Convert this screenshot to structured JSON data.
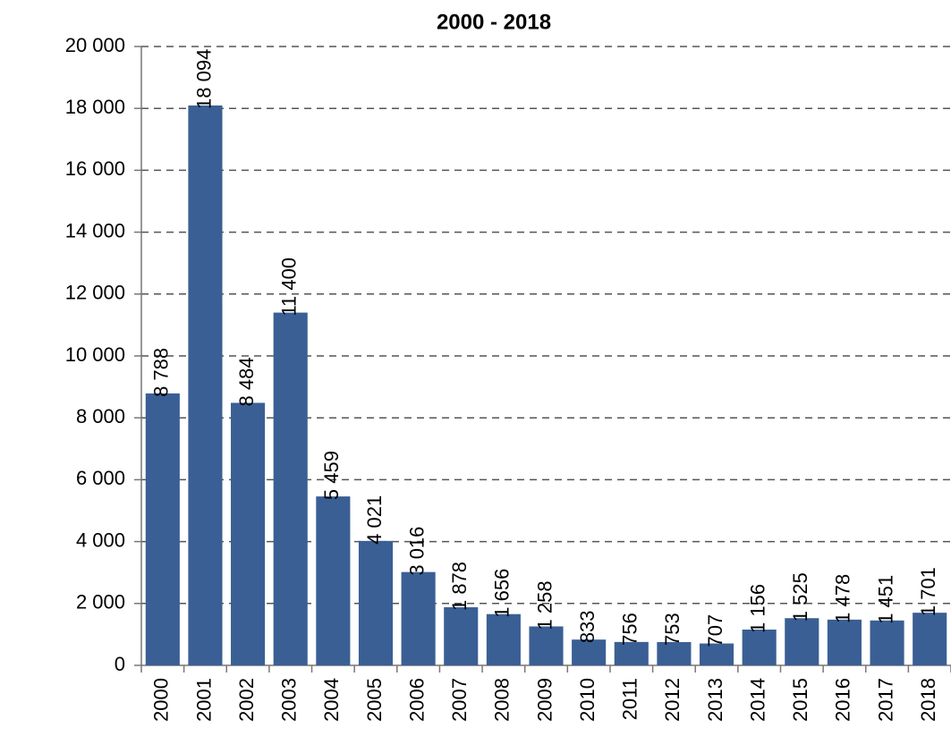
{
  "chart_data": {
    "type": "bar",
    "title": "2000 - 2018",
    "categories": [
      "2000",
      "2001",
      "2002",
      "2003",
      "2004",
      "2005",
      "2006",
      "2007",
      "2008",
      "2009",
      "2010",
      "2011",
      "2012",
      "2013",
      "2014",
      "2015",
      "2016",
      "2017",
      "2018"
    ],
    "values": [
      8788,
      18094,
      8484,
      11400,
      5459,
      4021,
      3016,
      1878,
      1656,
      1258,
      833,
      756,
      753,
      707,
      1156,
      1525,
      1478,
      1451,
      1701
    ],
    "value_labels": [
      "8 788",
      "18 094",
      "8 484",
      "11 400",
      "5 459",
      "4 021",
      "3 016",
      "1 878",
      "1 656",
      "1 258",
      "833",
      "756",
      "753",
      "707",
      "1 156",
      "1 525",
      "1 478",
      "1 451",
      "1 701"
    ],
    "color": "#3a5f94",
    "ylim": [
      0,
      20000
    ],
    "yticks": [
      0,
      {
        "value": 2000,
        "label": "2 000"
      },
      {
        "value": 4000,
        "label": "4 000"
      },
      {
        "value": 6000,
        "label": "6 000"
      },
      {
        "value": 8000,
        "label": "8 000"
      },
      {
        "value": 10000,
        "label": "10 000"
      },
      {
        "value": 12000,
        "label": "12 000"
      },
      {
        "value": 14000,
        "label": "14 000"
      },
      {
        "value": 16000,
        "label": "16 000"
      },
      {
        "value": 18000,
        "label": "18 000"
      },
      {
        "value": 20000,
        "label": "20 000"
      }
    ],
    "grid": true
  }
}
